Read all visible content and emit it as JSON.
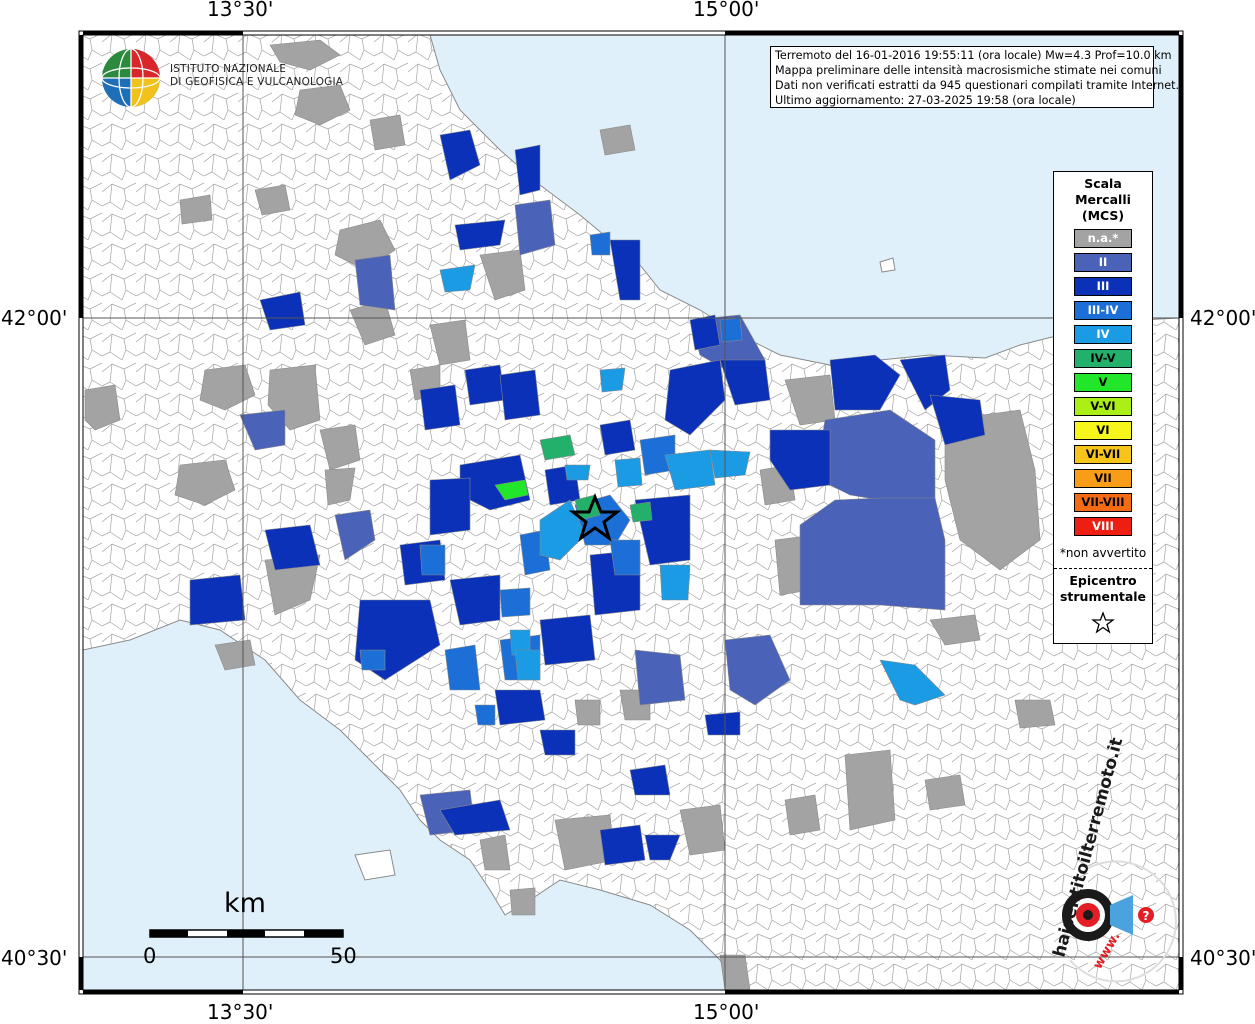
{
  "map": {
    "colors": {
      "sea": "#dff0fa",
      "land": "#ffffff",
      "border": "#9a9a9a",
      "grid": "#555555",
      "na": "#a3a3a3",
      "II": "#4a63b8",
      "III": "#0a31b8",
      "III_IV": "#1c6fd6",
      "IV": "#1a9be3",
      "IV_V": "#22b06a",
      "V": "#22e62a"
    },
    "ticks": {
      "top": [
        "13°30'",
        "15°00'"
      ],
      "bottom": [
        "13°30'",
        "15°00'"
      ],
      "left": [
        "42°00'",
        "40°30'"
      ],
      "right": [
        "42°00'",
        "40°30'"
      ]
    },
    "epicenter_icon": "star-icon"
  },
  "institute": {
    "line1": "ISTITUTO NAZIONALE",
    "line2": "DI GEOFISICA E VULCANOLOGIA",
    "logo_icon": "ingv-globe-icon"
  },
  "info": {
    "line1": "Terremoto del 16-01-2016 19:55:11 (ora locale) Mw=4.3 Prof=10.0 km",
    "line2": "Mappa preliminare delle intensità macrosismiche stimate nei comuni",
    "line3": "Dati non verificati estratti da 945 questionari compilati tramite Internet.",
    "line4": "Ultimo aggiornamento: 27-03-2025 19:58 (ora locale)"
  },
  "legend": {
    "title1": "Scala",
    "title2": "Mercalli",
    "title3": "(MCS)",
    "items": [
      {
        "label": "n.a.*",
        "color": "#a3a3a3",
        "text_color": "#ffffff"
      },
      {
        "label": "II",
        "color": "#4a63b8",
        "text_color": "#ffffff"
      },
      {
        "label": "III",
        "color": "#0a31b8",
        "text_color": "#ffffff"
      },
      {
        "label": "III-IV",
        "color": "#1c6fd6",
        "text_color": "#ffffff"
      },
      {
        "label": "IV",
        "color": "#1a9be3",
        "text_color": "#ffffff"
      },
      {
        "label": "IV-V",
        "color": "#22b06a",
        "text_color": "#000000"
      },
      {
        "label": "V",
        "color": "#22e62a",
        "text_color": "#000000"
      },
      {
        "label": "V-VI",
        "color": "#aaf016",
        "text_color": "#000000"
      },
      {
        "label": "VI",
        "color": "#f6f61c",
        "text_color": "#000000"
      },
      {
        "label": "VI-VII",
        "color": "#f7c51a",
        "text_color": "#000000"
      },
      {
        "label": "VII",
        "color": "#f99c17",
        "text_color": "#000000"
      },
      {
        "label": "VII-VIII",
        "color": "#f56b14",
        "text_color": "#000000"
      },
      {
        "label": "VIII",
        "color": "#ee1f12",
        "text_color": "#ffffff"
      }
    ],
    "note": "*non avvertito",
    "epicenter1": "Epicentro",
    "epicenter2": "strumentale",
    "epicenter_icon": "star-icon"
  },
  "scale": {
    "unit": "km",
    "start": "0",
    "end": "50"
  },
  "hsit": {
    "text": "haisentitoilterremoto.it",
    "www": "www.",
    "icon": "hsit-target-icon"
  }
}
